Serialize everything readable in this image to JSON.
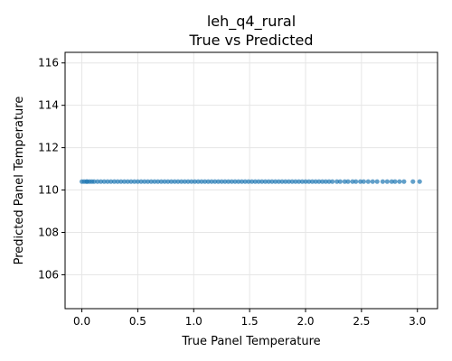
{
  "chart_data": {
    "type": "scatter",
    "title_line1": "leh_q4_rural",
    "title_line2": "True vs Predicted",
    "xlabel": "True Panel Temperature",
    "ylabel": "Predicted Panel Temperature",
    "xlim": [
      -0.15,
      3.18
    ],
    "ylim": [
      104.4,
      116.5
    ],
    "xticks": [
      0.0,
      0.5,
      1.0,
      1.5,
      2.0,
      2.5,
      3.0
    ],
    "xtick_labels": [
      "0.0",
      "0.5",
      "1.0",
      "1.5",
      "2.0",
      "2.5",
      "3.0"
    ],
    "yticks": [
      106,
      108,
      110,
      112,
      114,
      116
    ],
    "ytick_labels": [
      "106",
      "108",
      "110",
      "112",
      "114",
      "116"
    ],
    "grid": true,
    "legend": "none",
    "colors": {
      "point": "#1f77b4",
      "grid": "#e6e6e6",
      "axis": "#000000"
    },
    "series": [
      {
        "x": [
          0.0,
          0.02,
          0.04,
          0.05,
          0.07,
          0.09,
          0.11,
          0.14,
          0.17,
          0.2,
          0.23,
          0.26,
          0.29,
          0.32,
          0.35,
          0.38,
          0.41,
          0.44,
          0.47,
          0.5,
          0.53,
          0.56,
          0.59,
          0.62,
          0.65,
          0.68,
          0.71,
          0.74,
          0.77,
          0.8,
          0.83,
          0.86,
          0.89,
          0.92,
          0.95,
          0.98,
          1.01,
          1.04,
          1.07,
          1.1,
          1.13,
          1.16,
          1.19,
          1.22,
          1.25,
          1.28,
          1.31,
          1.34,
          1.37,
          1.4,
          1.43,
          1.46,
          1.49,
          1.52,
          1.55,
          1.58,
          1.61,
          1.64,
          1.67,
          1.7,
          1.73,
          1.76,
          1.79,
          1.82,
          1.85,
          1.88,
          1.91,
          1.94,
          1.97,
          2.0,
          2.03,
          2.06,
          2.09,
          2.12,
          2.15,
          2.18,
          2.21,
          2.24,
          2.28,
          2.31,
          2.35,
          2.38,
          2.42,
          2.45,
          2.49,
          2.52,
          2.56,
          2.6,
          2.64,
          2.69,
          2.73,
          2.77,
          2.8,
          2.84,
          2.88,
          2.96,
          3.02
        ],
        "y": [
          110.4,
          110.4,
          110.4,
          110.4,
          110.4,
          110.4,
          110.4,
          110.4,
          110.4,
          110.4,
          110.4,
          110.4,
          110.4,
          110.4,
          110.4,
          110.4,
          110.4,
          110.4,
          110.4,
          110.4,
          110.4,
          110.4,
          110.4,
          110.4,
          110.4,
          110.4,
          110.4,
          110.4,
          110.4,
          110.4,
          110.4,
          110.4,
          110.4,
          110.4,
          110.4,
          110.4,
          110.4,
          110.4,
          110.4,
          110.4,
          110.4,
          110.4,
          110.4,
          110.4,
          110.4,
          110.4,
          110.4,
          110.4,
          110.4,
          110.4,
          110.4,
          110.4,
          110.4,
          110.4,
          110.4,
          110.4,
          110.4,
          110.4,
          110.4,
          110.4,
          110.4,
          110.4,
          110.4,
          110.4,
          110.4,
          110.4,
          110.4,
          110.4,
          110.4,
          110.4,
          110.4,
          110.4,
          110.4,
          110.4,
          110.4,
          110.4,
          110.4,
          110.4,
          110.4,
          110.4,
          110.4,
          110.4,
          110.4,
          110.4,
          110.4,
          110.4,
          110.4,
          110.4,
          110.4,
          110.4,
          110.4,
          110.4,
          110.4,
          110.4,
          110.4,
          110.4,
          110.4
        ]
      }
    ]
  }
}
